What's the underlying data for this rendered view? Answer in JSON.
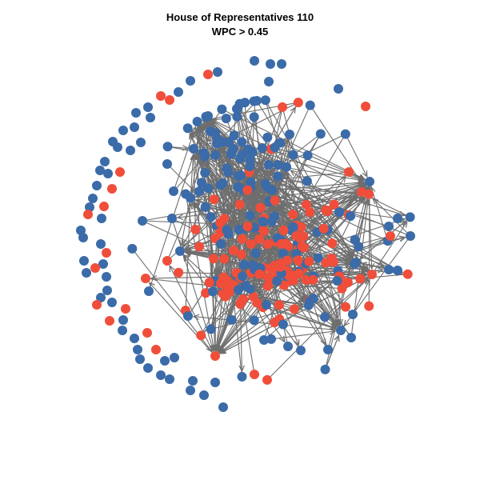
{
  "title": {
    "line1": "House of Representatives 110",
    "line2": "WPC > 0.45"
  },
  "colors": {
    "blue_party": "#3B6BA8",
    "red_party": "#F04E3A",
    "edge": "#6E6E6E",
    "background": "#FFFFFF"
  },
  "network": {
    "directed": true,
    "node_colors": [
      "blue",
      "red"
    ]
  }
}
